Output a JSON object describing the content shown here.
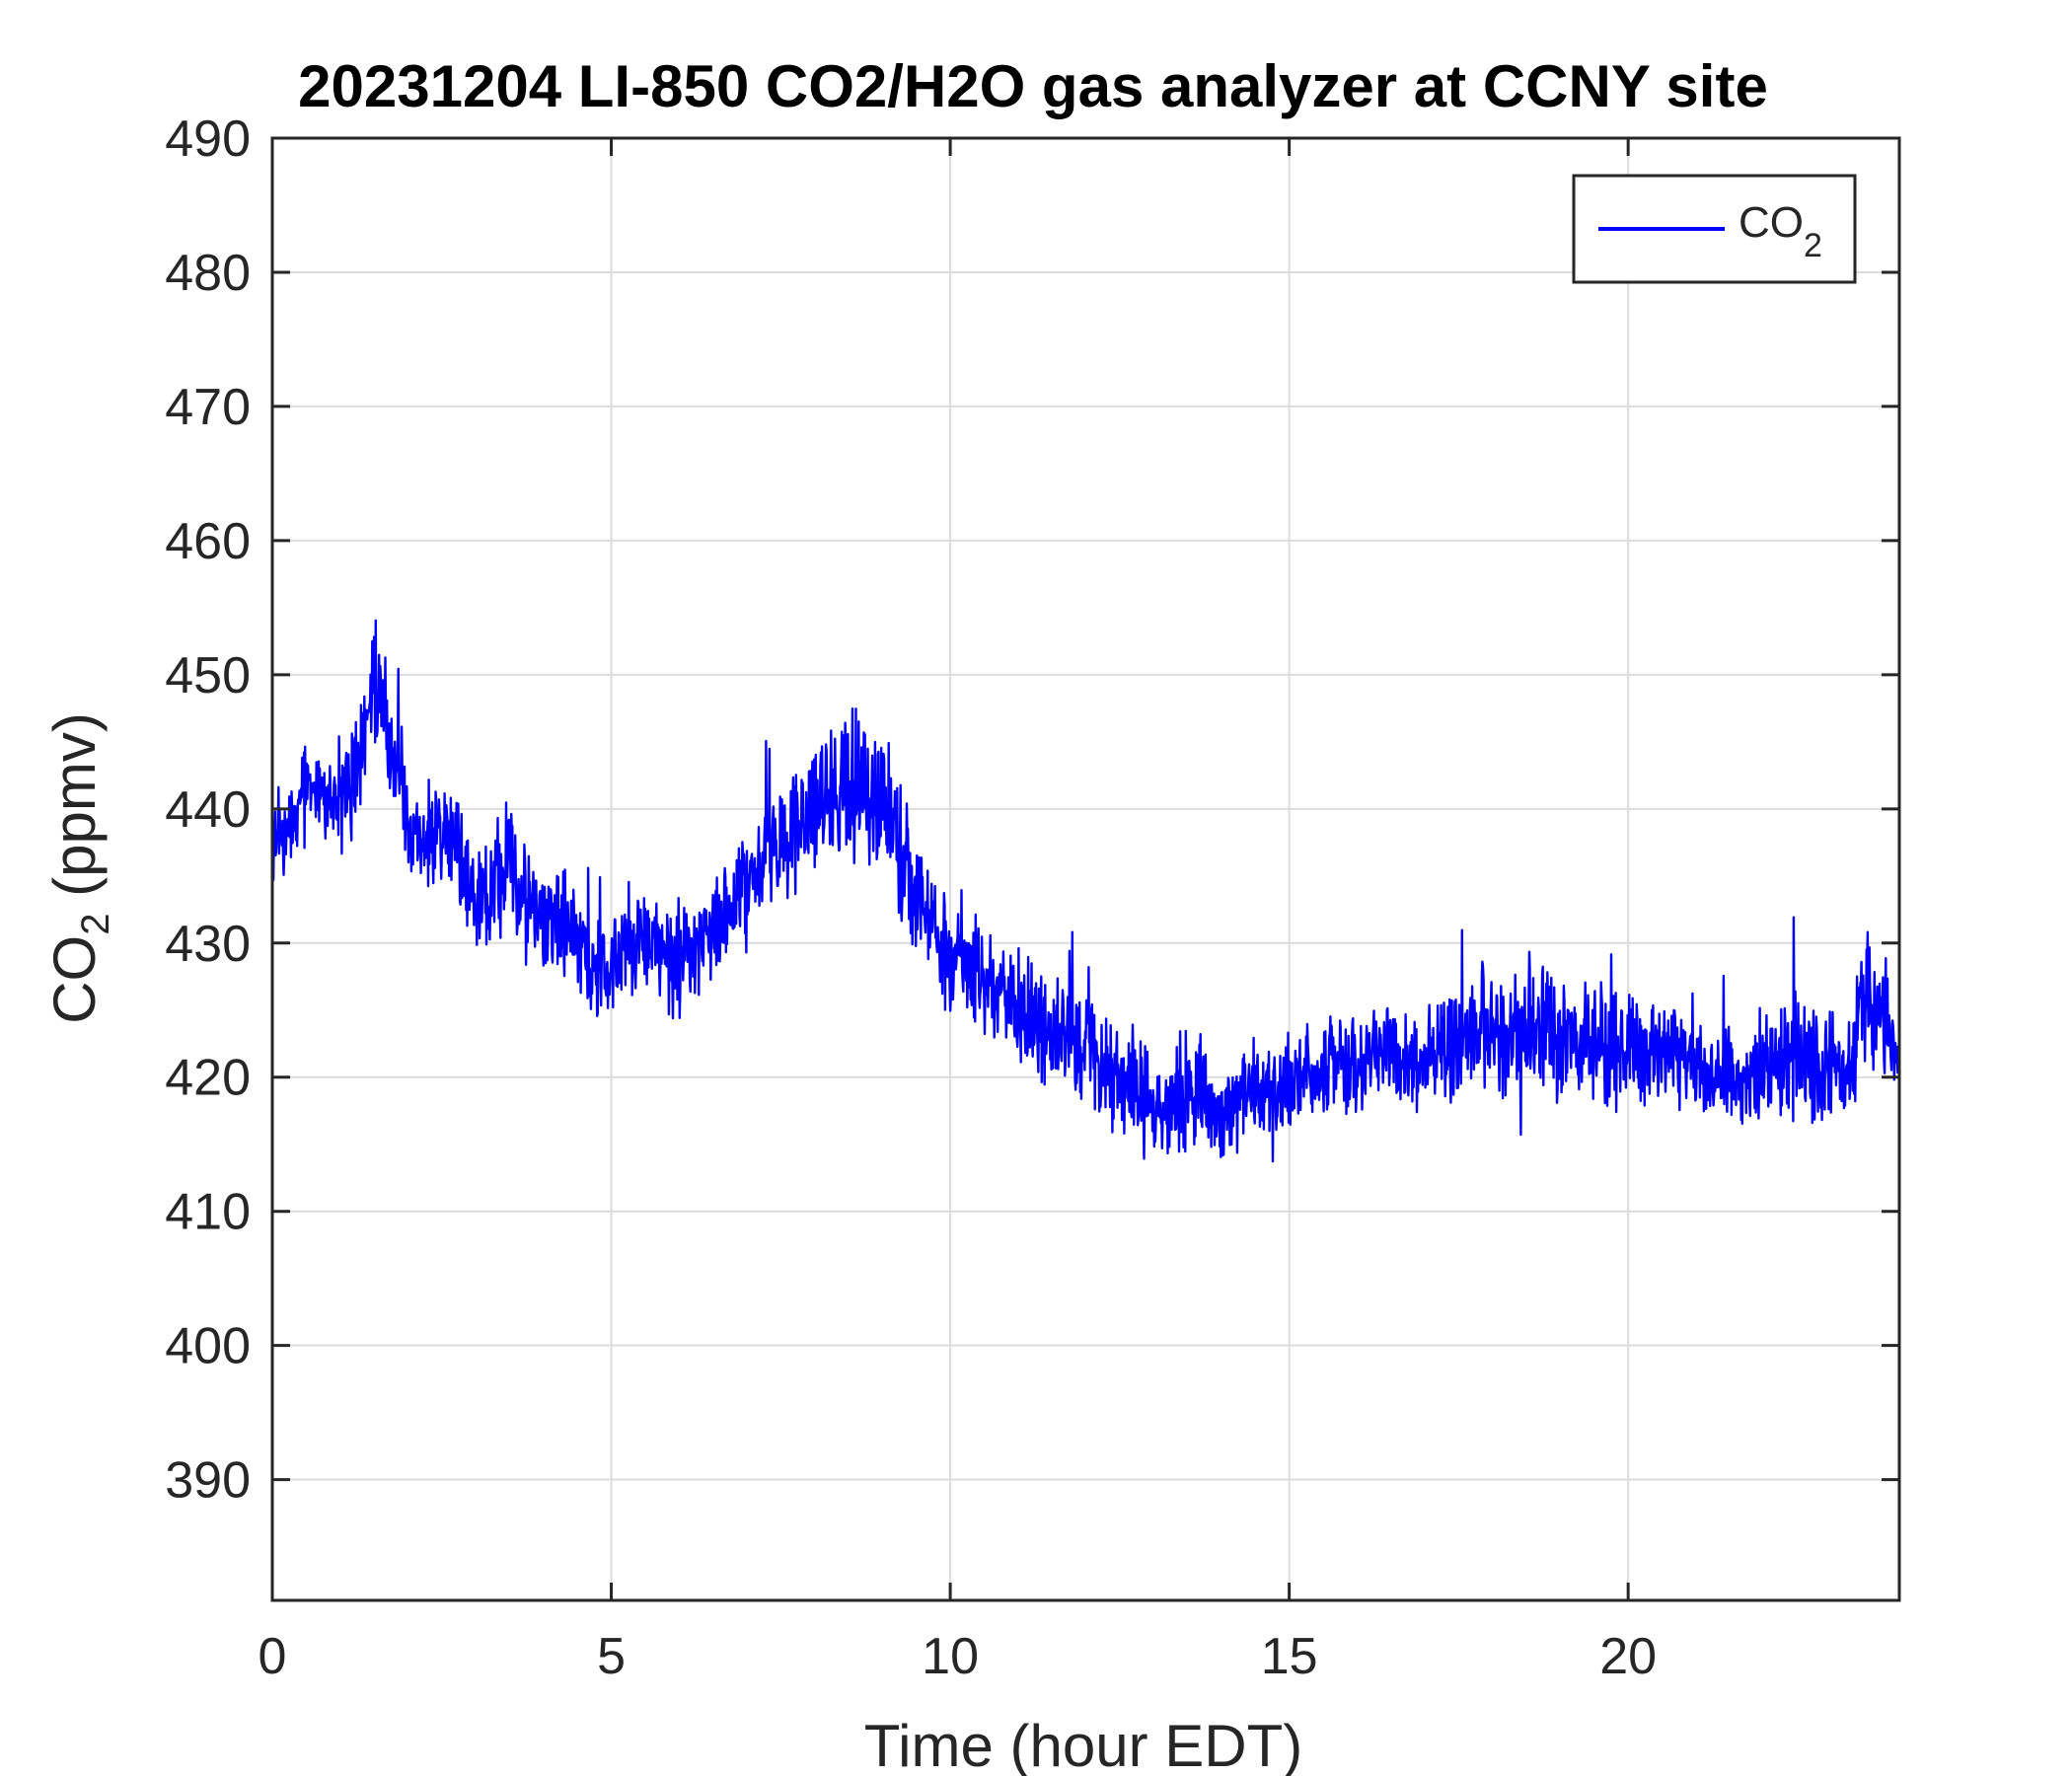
{
  "chart_data": {
    "type": "line",
    "title": "20231204 LI-850 CO2/H2O gas analyzer at CCNY site",
    "xlabel": "Time (hour EDT)",
    "ylabel": {
      "main": "CO",
      "sub": "2",
      "suffix": " (ppmv)"
    },
    "xlim": [
      0,
      24
    ],
    "ylim": [
      381,
      490
    ],
    "xticks": [
      0,
      5,
      10,
      15,
      20
    ],
    "yticks": [
      390,
      400,
      410,
      420,
      430,
      440,
      450,
      460,
      470,
      480,
      490
    ],
    "grid": true,
    "legend": {
      "placement": "top-right",
      "entries": [
        {
          "main": "CO",
          "sub": "2"
        }
      ]
    },
    "series": [
      {
        "name": "CO2",
        "color": "#0000ff",
        "x": [
          0.0,
          0.25,
          0.5,
          0.75,
          1.0,
          1.25,
          1.5,
          1.75,
          2.0,
          2.25,
          2.5,
          2.75,
          3.0,
          3.25,
          3.5,
          3.75,
          4.0,
          4.25,
          4.5,
          4.75,
          5.0,
          5.25,
          5.5,
          5.75,
          6.0,
          6.25,
          6.5,
          6.75,
          7.0,
          7.25,
          7.5,
          7.75,
          8.0,
          8.25,
          8.5,
          8.75,
          9.0,
          9.25,
          9.5,
          9.75,
          10.0,
          10.25,
          10.5,
          10.75,
          11.0,
          11.25,
          11.5,
          11.75,
          12.0,
          12.25,
          12.5,
          12.75,
          13.0,
          13.25,
          13.5,
          13.75,
          14.0,
          14.25,
          14.5,
          14.75,
          15.0,
          15.25,
          15.5,
          15.75,
          16.0,
          16.25,
          16.5,
          16.75,
          17.0,
          17.25,
          17.5,
          17.75,
          18.0,
          18.25,
          18.5,
          18.75,
          19.0,
          19.25,
          19.5,
          19.75,
          20.0,
          20.25,
          20.5,
          20.75,
          21.0,
          21.25,
          21.5,
          21.75,
          22.0,
          22.25,
          22.5,
          22.75,
          23.0,
          23.25,
          23.5,
          23.75,
          24.0
        ],
        "y": [
          437,
          439,
          442,
          441,
          440,
          443,
          450,
          445,
          440,
          437,
          439,
          436,
          433,
          434,
          436,
          433,
          431,
          432,
          430,
          428,
          429,
          429,
          430,
          429,
          428,
          430,
          431,
          432,
          434,
          435,
          437,
          438,
          440,
          441,
          442,
          441,
          440,
          437,
          434,
          431,
          429,
          428,
          427,
          426,
          425,
          424,
          423,
          423,
          422,
          421,
          420,
          419,
          418,
          418,
          419,
          418,
          417,
          418,
          419,
          419,
          420,
          420,
          421,
          421,
          421,
          422,
          422,
          421,
          421,
          422,
          423,
          424,
          423,
          423,
          424,
          424,
          423,
          423,
          423,
          422,
          422,
          422,
          422,
          421,
          421,
          420,
          420,
          420,
          420,
          421,
          422,
          421,
          421,
          421,
          426,
          425,
          421
        ],
        "amplitude": [
          2.0,
          2.5,
          2.5,
          2.5,
          3.0,
          3.5,
          4.5,
          3.5,
          3.0,
          3.0,
          3.0,
          3.0,
          2.5,
          3.0,
          3.5,
          3.0,
          3.0,
          3.0,
          3.0,
          3.0,
          3.5,
          3.0,
          3.0,
          3.0,
          3.0,
          3.0,
          3.0,
          3.0,
          3.0,
          3.5,
          3.5,
          3.5,
          4.0,
          4.5,
          4.5,
          4.0,
          3.5,
          3.5,
          3.0,
          3.0,
          3.0,
          3.0,
          3.0,
          3.0,
          3.0,
          3.0,
          3.0,
          3.0,
          3.0,
          3.0,
          3.0,
          3.0,
          2.5,
          3.0,
          3.5,
          3.0,
          2.5,
          2.5,
          2.5,
          2.5,
          2.5,
          2.5,
          2.5,
          2.5,
          2.5,
          2.5,
          2.5,
          2.5,
          2.5,
          3.0,
          3.0,
          3.5,
          3.0,
          3.0,
          4.0,
          4.5,
          3.5,
          3.0,
          3.5,
          3.5,
          3.0,
          3.0,
          3.0,
          2.5,
          2.5,
          2.5,
          2.5,
          2.5,
          2.5,
          3.0,
          4.0,
          3.0,
          2.5,
          2.5,
          4.0,
          3.5,
          2.5
        ]
      }
    ]
  }
}
